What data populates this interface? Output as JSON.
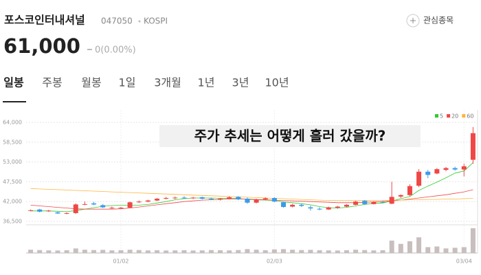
{
  "header": {
    "name": "포스코인터내셔널",
    "code": "047050",
    "market": "KOSPI",
    "watch_button": "관심종목",
    "price": "61,000",
    "change": "0(0.00%)"
  },
  "tabs": [
    "일봉",
    "주봉",
    "월봉",
    "1일",
    "3개월",
    "1년",
    "3년",
    "10년"
  ],
  "chart_data": {
    "type": "candlestick",
    "annotation": "주가 추세는 어떻게 흘러 갔을까?",
    "categories": [
      null,
      null,
      null,
      null,
      null,
      null,
      null,
      null,
      null,
      null,
      "01/02",
      null,
      null,
      null,
      null,
      null,
      null,
      null,
      null,
      null,
      null,
      null,
      null,
      null,
      null,
      null,
      null,
      "02/03",
      null,
      null,
      null,
      null,
      null,
      null,
      null,
      null,
      null,
      null,
      null,
      null,
      null,
      null,
      null,
      null,
      null,
      null,
      null,
      null,
      "03/04",
      null
    ],
    "open": [
      39500,
      39800,
      39300,
      39000,
      38700,
      38800,
      41200,
      41500,
      41000,
      40200,
      40100,
      40300,
      41800,
      42000,
      42300,
      42800,
      43000,
      43100,
      42900,
      43200,
      42800,
      42600,
      42800,
      43300,
      42800,
      41700,
      42600,
      43000,
      41800,
      40600,
      41100,
      40400,
      40000,
      39800,
      40300,
      40600,
      41100,
      42200,
      41300,
      41900,
      41400,
      43400,
      43800,
      46400,
      50300,
      49800,
      50800,
      51300,
      50900,
      53600
    ],
    "high": [
      39800,
      40000,
      39700,
      39200,
      39000,
      41500,
      42000,
      41900,
      41300,
      40600,
      40500,
      42000,
      42300,
      42500,
      43000,
      43300,
      43400,
      43500,
      43300,
      43400,
      43100,
      43000,
      43500,
      43500,
      43100,
      42800,
      43200,
      43200,
      42000,
      41400,
      41400,
      40900,
      40400,
      40600,
      40800,
      41300,
      42200,
      42400,
      42100,
      42200,
      47500,
      44000,
      46800,
      51000,
      50800,
      51300,
      51600,
      51700,
      52500,
      62700
    ],
    "low": [
      39300,
      39000,
      39100,
      38600,
      38500,
      38600,
      41000,
      41000,
      40200,
      40000,
      39900,
      40200,
      41600,
      41800,
      42100,
      42600,
      42700,
      42800,
      42700,
      42600,
      42400,
      42300,
      42600,
      42400,
      41400,
      41500,
      42400,
      41800,
      40300,
      40400,
      40500,
      39500,
      39600,
      39700,
      40000,
      40400,
      41000,
      41100,
      41200,
      41600,
      41300,
      43000,
      43500,
      46000,
      48500,
      49600,
      50400,
      50600,
      49000,
      52500
    ],
    "close": [
      39600,
      39200,
      39500,
      38700,
      38800,
      41200,
      41300,
      41200,
      40400,
      40300,
      40300,
      41800,
      42000,
      42300,
      42800,
      43000,
      43100,
      42900,
      43100,
      42800,
      42600,
      42800,
      43200,
      42600,
      41700,
      42600,
      42900,
      42000,
      40500,
      41100,
      40800,
      40100,
      39800,
      40400,
      40600,
      41100,
      42000,
      41300,
      41900,
      41800,
      43300,
      43800,
      46300,
      50300,
      49400,
      51000,
      51300,
      50900,
      51800,
      61000
    ],
    "volume": [
      500,
      450,
      400,
      380,
      420,
      700,
      500,
      450,
      480,
      400,
      420,
      500,
      450,
      400,
      420,
      380,
      400,
      420,
      380,
      400,
      450,
      420,
      400,
      450,
      600,
      500,
      420,
      550,
      600,
      500,
      450,
      480,
      420,
      400,
      380,
      420,
      500,
      450,
      400,
      420,
      1900,
      1400,
      1800,
      2400,
      900,
      1000,
      700,
      800,
      900,
      3800
    ],
    "volume_lim": [
      0,
      4000
    ],
    "up_color": "#f04646",
    "down_color": "#3b9aea",
    "volume_color": "#c9bebe",
    "series": [
      {
        "name": "5",
        "color": "#2fcc2f",
        "values": [
          39400,
          39400,
          39400,
          39300,
          39200,
          39500,
          39900,
          40300,
          40700,
          40900,
          41000,
          41000,
          41000,
          41200,
          41600,
          42000,
          42500,
          42800,
          43000,
          43000,
          43000,
          42900,
          42900,
          42900,
          42600,
          42500,
          42400,
          42300,
          41900,
          41700,
          41400,
          41100,
          40600,
          40300,
          40200,
          40400,
          40800,
          41200,
          41500,
          41600,
          42200,
          42800,
          43400,
          45100,
          46300,
          47400,
          48600,
          49900,
          50500,
          52800
        ]
      },
      {
        "name": "20",
        "color": "#f04646",
        "values": [
          41000,
          40800,
          40600,
          40400,
          40200,
          40000,
          39900,
          39900,
          39900,
          39900,
          40000,
          40200,
          40500,
          40800,
          41100,
          41400,
          41700,
          42000,
          42200,
          42400,
          42500,
          42600,
          42700,
          42700,
          42700,
          42600,
          42500,
          42400,
          42300,
          42200,
          42100,
          42000,
          41900,
          41800,
          41700,
          41700,
          41700,
          41800,
          41900,
          42000,
          42200,
          42400,
          42700,
          43000,
          43300,
          43600,
          43900,
          44300,
          44700,
          45300
        ]
      },
      {
        "name": "60",
        "color": "#ffb43c",
        "values": [
          45600,
          45500,
          45400,
          45300,
          45200,
          45100,
          45000,
          44900,
          44800,
          44700,
          44600,
          44500,
          44400,
          44300,
          44200,
          44100,
          44000,
          43900,
          43800,
          43700,
          43600,
          43500,
          43400,
          43300,
          43200,
          43100,
          43000,
          42900,
          42800,
          42700,
          42600,
          42500,
          42400,
          42300,
          42300,
          42300,
          42300,
          42300,
          42300,
          42300,
          42400,
          42400,
          42500,
          42500,
          42600,
          42600,
          42700,
          42700,
          42800,
          42900
        ]
      }
    ],
    "ylim": [
      36500,
      64000
    ],
    "yticks": [
      {
        "value": 64000,
        "label": "64,000"
      },
      {
        "value": 58500,
        "label": "58,500"
      },
      {
        "value": 53000,
        "label": "53,000"
      },
      {
        "value": 47500,
        "label": "47,500"
      },
      {
        "value": 42000,
        "label": "42,000"
      },
      {
        "value": 36500,
        "label": "36,500"
      }
    ],
    "grid": true
  }
}
